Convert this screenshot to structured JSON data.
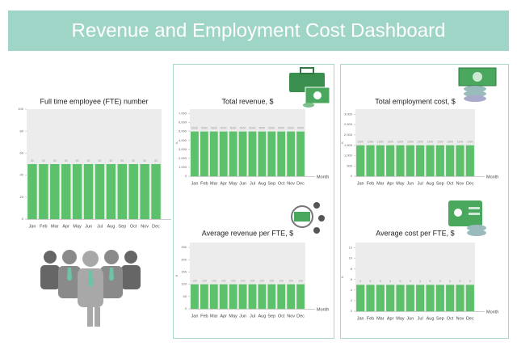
{
  "header": {
    "title": "Revenue and Employment Cost Dashboard"
  },
  "chart_data": [
    {
      "type": "bar",
      "title": "Full time employee (FTE) number",
      "color": "#5cc16a",
      "categories": [
        "Jan",
        "Feb",
        "Mar",
        "Apr",
        "May",
        "Jun",
        "Jul",
        "Aug",
        "Sep",
        "Oct",
        "Nov",
        "Dec"
      ],
      "values": [
        50,
        50,
        50,
        50,
        50,
        50,
        50,
        50,
        50,
        50,
        50,
        50
      ],
      "ylim": [
        0,
        100
      ],
      "yticks": [
        0,
        20,
        40,
        60,
        80,
        100
      ]
    },
    {
      "type": "bar",
      "title": "Total revenue, $",
      "ylabel": "K",
      "xlabel": "Month",
      "color": "#5cc16a",
      "categories": [
        "Jan",
        "Feb",
        "Mar",
        "Apr",
        "May",
        "Jun",
        "Jul",
        "Aug",
        "Sep",
        "Oct",
        "Nov",
        "Dec"
      ],
      "values": [
        5000,
        5000,
        5000,
        5000,
        5000,
        5000,
        5000,
        5000,
        5000,
        5000,
        5000,
        5000
      ],
      "ylim": [
        0,
        7500
      ],
      "yticks": [
        0,
        {
          "value": 1000,
          "label": "1,000"
        },
        {
          "value": 2000,
          "label": "2,000"
        },
        {
          "value": 3000,
          "label": "3,000"
        },
        {
          "value": 4000,
          "label": "4,000"
        },
        {
          "value": 5000,
          "label": "5,000"
        },
        {
          "value": 6000,
          "label": "6,000"
        },
        {
          "value": 7000,
          "label": "7,000"
        }
      ]
    },
    {
      "type": "bar",
      "title": "Total employment cost, $",
      "ylabel": "K",
      "xlabel": "Month",
      "color": "#5cc16a",
      "categories": [
        "Jan",
        "Feb",
        "Mar",
        "Apr",
        "May",
        "Jun",
        "Jul",
        "Aug",
        "Sep",
        "Oct",
        "Nov",
        "Dec"
      ],
      "values": [
        1500,
        1500,
        1500,
        1500,
        1500,
        1500,
        1500,
        1500,
        1500,
        1500,
        1500,
        1500
      ],
      "ylim": [
        0,
        3250
      ],
      "yticks": [
        0,
        500,
        {
          "value": 1000,
          "label": "1,000"
        },
        {
          "value": 1500,
          "label": "1,500"
        },
        {
          "value": 2000,
          "label": "2,000"
        },
        {
          "value": 2500,
          "label": "2,500"
        },
        {
          "value": 3000,
          "label": "3,000"
        }
      ]
    },
    {
      "type": "bar",
      "title": "Average revenue per FTE, $",
      "ylabel": "K",
      "xlabel": "Month",
      "color": "#5cc16a",
      "categories": [
        "Jan",
        "Feb",
        "Mar",
        "Apr",
        "May",
        "Jun",
        "Jul",
        "Aug",
        "Sep",
        "Oct",
        "Nov",
        "Dec"
      ],
      "values": [
        100,
        100,
        100,
        100,
        100,
        100,
        100,
        100,
        100,
        100,
        100,
        100
      ],
      "ylim": [
        0,
        270
      ],
      "yticks": [
        0,
        50,
        100,
        150,
        200,
        250
      ]
    },
    {
      "type": "bar",
      "title": "Average cost per FTE, $",
      "ylabel": "K",
      "xlabel": "Month",
      "color": "#5cc16a",
      "categories": [
        "Jan",
        "Feb",
        "Mar",
        "Apr",
        "May",
        "Jun",
        "Jul",
        "Aug",
        "Sep",
        "Oct",
        "Nov",
        "Dec"
      ],
      "values": [
        5,
        5,
        5,
        5,
        5,
        5,
        5,
        5,
        5,
        5,
        5,
        5
      ],
      "ylim": [
        0,
        13
      ],
      "yticks": [
        0,
        2,
        4,
        6,
        8,
        10,
        12
      ]
    }
  ]
}
